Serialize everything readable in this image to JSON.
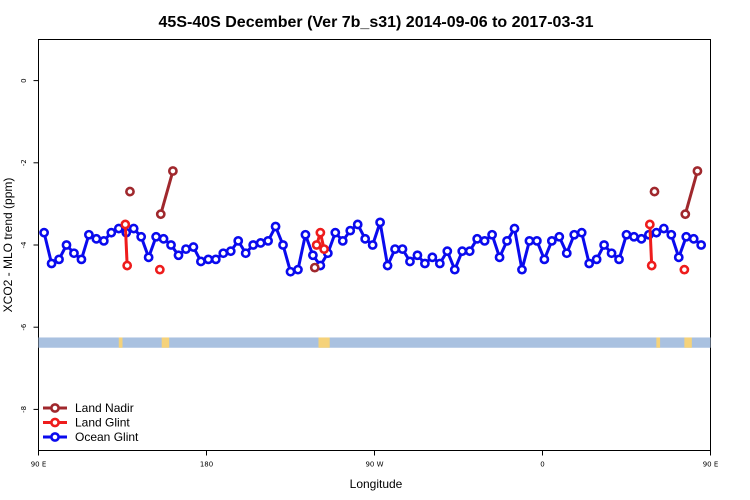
{
  "chart_data": {
    "type": "line",
    "title": "45S-40S December (Ver 7b_s31)   2014-09-06 to 2017-03-31",
    "xlabel": "Longitude",
    "ylabel": "XCO2 - MLO trend (ppm)",
    "xlim": [
      90,
      450
    ],
    "ylim": [
      -9,
      1
    ],
    "x_ticks": [
      {
        "value": 90,
        "label": "90 E"
      },
      {
        "value": 180,
        "label": "180"
      },
      {
        "value": 270,
        "label": "90 W"
      },
      {
        "value": 360,
        "label": "0"
      },
      {
        "value": 450,
        "label": "90 E"
      },
      {
        "value": 540,
        "label": "180"
      }
    ],
    "y_ticks": [
      0,
      -2,
      -4,
      -6,
      -8
    ],
    "grid": false,
    "legend_position": "bottom-left",
    "land_ocean_strip": {
      "y_range": [
        -6.5,
        -6.25
      ],
      "ocean_color": "#a9c1e0",
      "land_color": "#f5d27a",
      "land_lon": [
        [
          133,
          135
        ],
        [
          156,
          160
        ],
        [
          240,
          246
        ],
        [
          421,
          423
        ],
        [
          436,
          440
        ]
      ]
    },
    "series": [
      {
        "name": "Land Nadir",
        "color": "#a0282d",
        "segments": [
          [
            [
              139,
              -2.7
            ]
          ],
          [
            [
              155.5,
              -3.25
            ],
            [
              162,
              -2.2
            ]
          ],
          [
            [
              238,
              -4.55
            ]
          ],
          [
            [
              420,
              -2.7
            ]
          ],
          [
            [
              436.5,
              -3.25
            ],
            [
              443,
              -2.2
            ]
          ]
        ]
      },
      {
        "name": "Land Glint",
        "color": "#ee1c1c",
        "segments": [
          [
            [
              136.5,
              -3.5
            ],
            [
              137.5,
              -4.5
            ]
          ],
          [
            [
              155,
              -4.6
            ]
          ],
          [
            [
              239,
              -4.0
            ],
            [
              241,
              -3.7
            ],
            [
              243,
              -4.1
            ]
          ],
          [
            [
              417.5,
              -3.5
            ],
            [
              418.5,
              -4.5
            ]
          ],
          [
            [
              436,
              -4.6
            ]
          ]
        ]
      },
      {
        "name": "Ocean Glint",
        "color": "#0a0aee",
        "segments": [
          [
            [
              93,
              -3.7
            ],
            [
              97,
              -4.45
            ],
            [
              101,
              -4.35
            ],
            [
              105,
              -4.0
            ],
            [
              109,
              -4.2
            ],
            [
              113,
              -4.35
            ],
            [
              117,
              -3.75
            ],
            [
              121,
              -3.85
            ],
            [
              125,
              -3.9
            ],
            [
              129,
              -3.7
            ],
            [
              133,
              -3.6
            ],
            [
              137,
              -3.7
            ],
            [
              141,
              -3.6
            ],
            [
              145,
              -3.8
            ],
            [
              149,
              -4.3
            ],
            [
              153,
              -3.8
            ],
            [
              157,
              -3.85
            ],
            [
              161,
              -4.0
            ],
            [
              165,
              -4.25
            ],
            [
              169,
              -4.1
            ],
            [
              173,
              -4.05
            ],
            [
              177,
              -4.4
            ],
            [
              181,
              -4.35
            ],
            [
              185,
              -4.35
            ],
            [
              189,
              -4.2
            ],
            [
              193,
              -4.15
            ],
            [
              197,
              -3.9
            ],
            [
              201,
              -4.2
            ],
            [
              205,
              -4.0
            ],
            [
              209,
              -3.95
            ],
            [
              213,
              -3.9
            ],
            [
              217,
              -3.55
            ],
            [
              221,
              -4.0
            ],
            [
              225,
              -4.65
            ],
            [
              229,
              -4.6
            ],
            [
              233,
              -3.75
            ],
            [
              237,
              -4.25
            ],
            [
              241,
              -4.5
            ],
            [
              245,
              -4.2
            ],
            [
              249,
              -3.7
            ],
            [
              253,
              -3.9
            ],
            [
              257,
              -3.65
            ],
            [
              261,
              -3.5
            ],
            [
              265,
              -3.85
            ],
            [
              269,
              -4.0
            ],
            [
              273,
              -3.45
            ],
            [
              277,
              -4.5
            ],
            [
              281,
              -4.1
            ],
            [
              285,
              -4.1
            ],
            [
              289,
              -4.4
            ],
            [
              293,
              -4.25
            ],
            [
              297,
              -4.45
            ],
            [
              301,
              -4.3
            ],
            [
              305,
              -4.45
            ],
            [
              309,
              -4.15
            ],
            [
              313,
              -4.6
            ],
            [
              317,
              -4.15
            ],
            [
              321,
              -4.15
            ],
            [
              325,
              -3.85
            ],
            [
              329,
              -3.9
            ],
            [
              333,
              -3.75
            ],
            [
              337,
              -4.3
            ],
            [
              341,
              -3.9
            ],
            [
              345,
              -3.6
            ],
            [
              349,
              -4.6
            ],
            [
              353,
              -3.9
            ],
            [
              357,
              -3.9
            ],
            [
              361,
              -4.35
            ],
            [
              365,
              -3.9
            ],
            [
              369,
              -3.8
            ],
            [
              373,
              -4.2
            ],
            [
              377,
              -3.75
            ],
            [
              381,
              -3.7
            ],
            [
              385,
              -4.45
            ],
            [
              389,
              -4.35
            ],
            [
              393,
              -4.0
            ],
            [
              397,
              -4.2
            ],
            [
              401,
              -4.35
            ],
            [
              405,
              -3.75
            ],
            [
              409,
              -3.8
            ],
            [
              413,
              -3.85
            ],
            [
              417,
              -3.75
            ],
            [
              421,
              -3.7
            ],
            [
              425,
              -3.6
            ],
            [
              429,
              -3.75
            ],
            [
              433,
              -4.3
            ],
            [
              437,
              -3.8
            ],
            [
              441,
              -3.85
            ],
            [
              445,
              -4.0
            ]
          ]
        ]
      }
    ]
  }
}
